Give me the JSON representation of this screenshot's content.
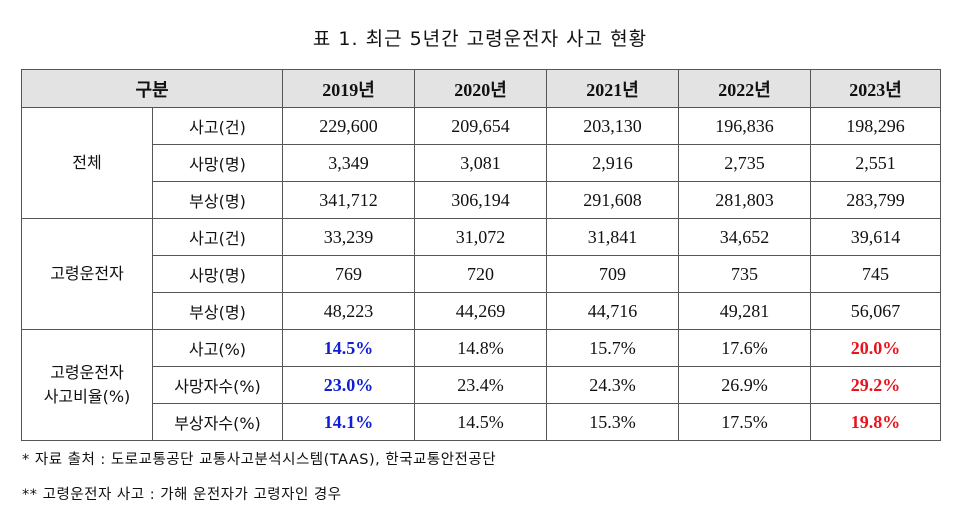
{
  "title": "표 1. 최근 5년간 고령운전자 사고 현황",
  "table": {
    "header": [
      "구분",
      "2019년",
      "2020년",
      "2021년",
      "2022년",
      "2023년"
    ],
    "groups": [
      {
        "label": "전체",
        "rows": [
          {
            "metric": "사고(건)",
            "values": [
              "229,600",
              "209,654",
              "203,130",
              "196,836",
              "198,296"
            ]
          },
          {
            "metric": "사망(명)",
            "values": [
              "3,349",
              "3,081",
              "2,916",
              "2,735",
              "2,551"
            ]
          },
          {
            "metric": "부상(명)",
            "values": [
              "341,712",
              "306,194",
              "291,608",
              "281,803",
              "283,799"
            ]
          }
        ]
      },
      {
        "label": "고령운전자",
        "rows": [
          {
            "metric": "사고(건)",
            "values": [
              "33,239",
              "31,072",
              "31,841",
              "34,652",
              "39,614"
            ]
          },
          {
            "metric": "사망(명)",
            "values": [
              "769",
              "720",
              "709",
              "735",
              "745"
            ]
          },
          {
            "metric": "부상(명)",
            "values": [
              "48,223",
              "44,269",
              "44,716",
              "49,281",
              "56,067"
            ]
          }
        ]
      },
      {
        "label_line1": "고령운전자",
        "label_line2": "사고비율(%)",
        "rows": [
          {
            "metric": "사고(%)",
            "values": [
              "14.5%",
              "14.8%",
              "15.7%",
              "17.6%",
              "20.0%"
            ]
          },
          {
            "metric": "사망자수(%)",
            "values": [
              "23.0%",
              "23.4%",
              "24.3%",
              "26.9%",
              "29.2%"
            ]
          },
          {
            "metric": "부상자수(%)",
            "values": [
              "14.1%",
              "14.5%",
              "15.3%",
              "17.5%",
              "19.8%"
            ]
          }
        ]
      }
    ],
    "highlight_colors": {
      "first_year": "#0f1fd6",
      "last_year": "#e8141a"
    }
  },
  "notes": [
    "* 자료 출처 : 도로교통공단 교통사고분석시스템(TAAS), 한국교통안전공단",
    "** 고령운전자 사고 : 가해 운전자가 고령자인 경우"
  ]
}
